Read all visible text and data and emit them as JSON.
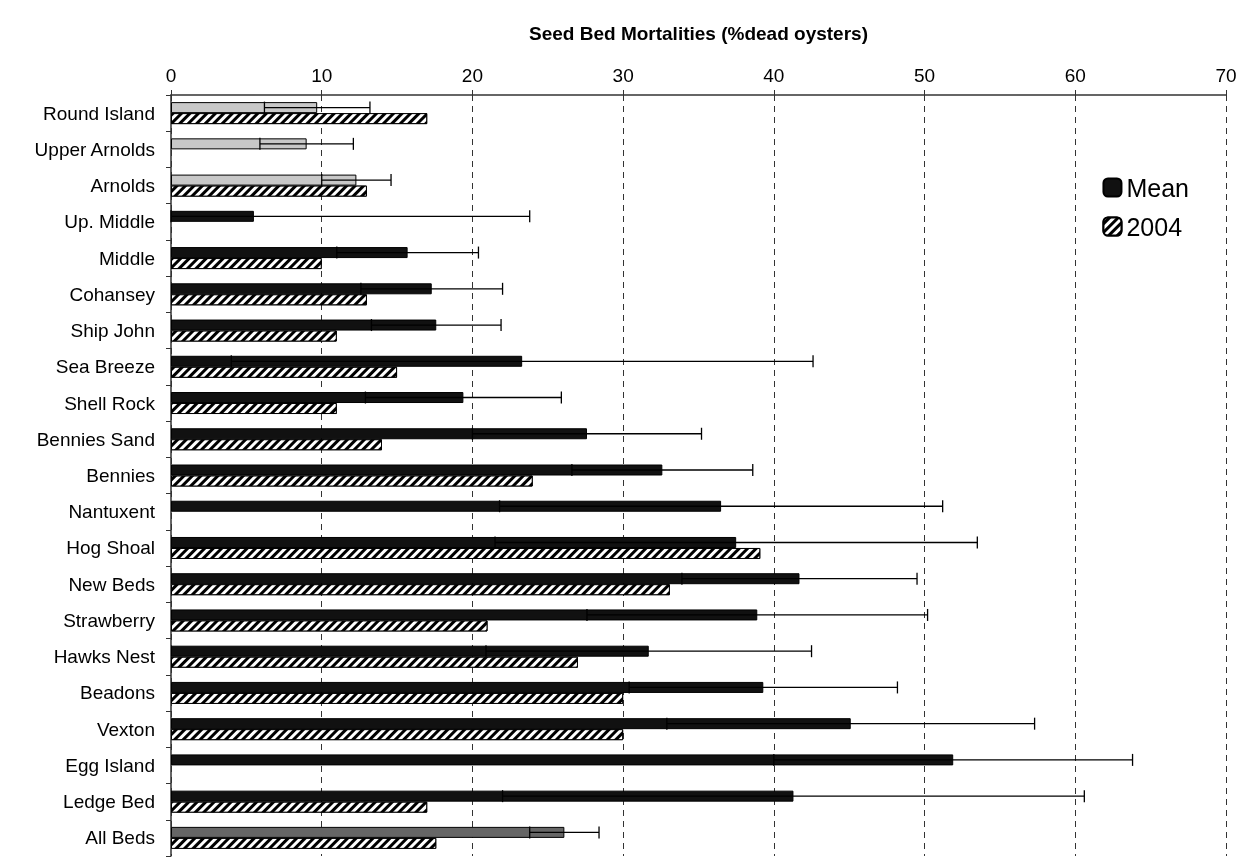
{
  "chart_data": {
    "type": "bar",
    "orientation": "horizontal",
    "xlabel": "Seed Bed Mortalities (%dead oysters)",
    "categories": [
      "Round Island",
      "Upper Arnolds",
      "Arnolds",
      "Up. Middle",
      "Middle",
      "Cohansey",
      "Ship John",
      "Sea Breeze",
      "Shell Rock",
      "Bennies Sand",
      "Bennies",
      "Nantuxent",
      "Hog Shoal",
      "New Beds",
      "Strawberry",
      "Hawks Nest",
      "Beadons",
      "Vexton",
      "Egg Island",
      "Ledge Bed",
      "All Beds"
    ],
    "series": [
      {
        "name": "Mean",
        "color": "#111111",
        "colors": [
          "#c8c8c8",
          "#c8c8c8",
          "#c8c8c8",
          "#111111",
          "#111111",
          "#111111",
          "#111111",
          "#111111",
          "#111111",
          "#111111",
          "#111111",
          "#111111",
          "#111111",
          "#111111",
          "#111111",
          "#111111",
          "#111111",
          "#111111",
          "#111111",
          "#111111",
          "#666666"
        ],
        "values": [
          9.7,
          9.0,
          12.3,
          5.5,
          15.7,
          17.3,
          17.6,
          23.3,
          19.4,
          27.6,
          32.6,
          36.5,
          37.5,
          41.7,
          38.9,
          31.7,
          39.3,
          45.1,
          51.9,
          41.3,
          26.1
        ],
        "errors": [
          3.5,
          3.1,
          2.3,
          [
            0,
            23.8
          ],
          4.7,
          4.7,
          4.3,
          19.3,
          6.5,
          7.6,
          6.0,
          14.7,
          16.0,
          7.8,
          11.3,
          10.8,
          8.9,
          12.2,
          11.9,
          19.3,
          2.3
        ]
      },
      {
        "name": "2004",
        "color": "#000000",
        "values": [
          17.0,
          null,
          13.0,
          null,
          10.0,
          13.0,
          11.0,
          15.0,
          11.0,
          14.0,
          24.0,
          null,
          39.1,
          33.1,
          21.0,
          27.0,
          30.0,
          30.0,
          null,
          17.0,
          17.6
        ]
      }
    ],
    "xlim": [
      0,
      70
    ],
    "xticks": [
      0,
      10,
      20,
      30,
      40,
      50,
      60,
      70
    ],
    "grid": "x",
    "legend": "top right"
  }
}
